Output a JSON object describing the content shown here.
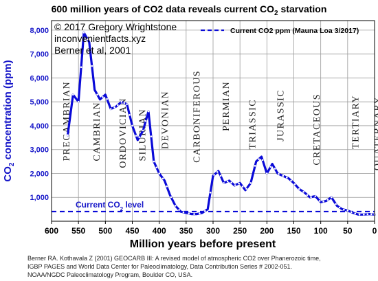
{
  "title_prefix": "600 million years of CO2 data reveals current CO",
  "title_sub": "2",
  "title_suffix": " starvation",
  "credits": [
    "© 2017 Gregory Wrightstone",
    "inconvenientfacts.xyz",
    "Berner et al, 2001"
  ],
  "legend_label": "Current CO2 ppm (Mauna Loa 3/2017)",
  "current_level": {
    "prefix": "Current CO",
    "sub": "2",
    "suffix": " level",
    "value": 405
  },
  "source_lines": [
    "Berner RA. Kothavala Z (2001) GEOCARB III: A revised model of atmospheric CO2 over Phanerozoic time,",
    "IGBP PAGES and World Data Center for Paleoclimatology, Data Contribution Series # 2002-051.",
    "NOAA/NGDC Paleoclimatology Program, Boulder CO, USA."
  ],
  "colors": {
    "series": "#0a0ad8",
    "axis_label": "#1515c8",
    "grid": "#9a9a9a",
    "text": "#000000"
  },
  "chart_data": {
    "type": "line",
    "xlabel": "Million years before present",
    "ylabel_prefix": "CO",
    "ylabel_sub": "2",
    "ylabel_suffix": " concentration (ppm)",
    "xlim": [
      600,
      0
    ],
    "ylim": [
      0,
      8400
    ],
    "x_ticks": [
      600,
      550,
      500,
      450,
      400,
      350,
      300,
      250,
      200,
      150,
      100,
      50,
      0
    ],
    "y_ticks": [
      1000,
      2000,
      3000,
      4000,
      5000,
      6000,
      7000,
      8000
    ],
    "y_tick_labels": [
      "1,000",
      "2,000",
      "3,000",
      "4,000",
      "5,000",
      "6,000",
      "7,000",
      "8,000"
    ],
    "periods": [
      {
        "name": "PRECAMBRIAN",
        "start": 600,
        "end": 542
      },
      {
        "name": "CAMBRIAN",
        "start": 542,
        "end": 488
      },
      {
        "name": "ORDOVICIAN",
        "start": 488,
        "end": 444
      },
      {
        "name": "SILURIAN",
        "start": 444,
        "end": 416
      },
      {
        "name": "DEVONIAN",
        "start": 416,
        "end": 359
      },
      {
        "name": "CARBONIFEROUS",
        "start": 359,
        "end": 299
      },
      {
        "name": "PERMIAN",
        "start": 299,
        "end": 251
      },
      {
        "name": "TRIASSIC",
        "start": 251,
        "end": 200
      },
      {
        "name": "JURASSIC",
        "start": 200,
        "end": 146
      },
      {
        "name": "CRETACEOUS",
        "start": 146,
        "end": 66
      },
      {
        "name": "TERTIARY",
        "start": 66,
        "end": 2
      },
      {
        "name": "QUATERNARY",
        "start": 2,
        "end": 0
      }
    ],
    "series": [
      {
        "x": [
          570,
          560,
          550,
          540,
          530,
          520,
          510,
          500,
          490,
          480,
          470,
          460,
          450,
          440,
          430,
          420,
          410,
          400,
          390,
          380,
          370,
          360,
          350,
          340,
          330,
          320,
          310,
          300,
          290,
          280,
          270,
          260,
          250,
          240,
          230,
          220,
          210,
          200,
          190,
          180,
          170,
          160,
          150,
          140,
          130,
          120,
          110,
          100,
          90,
          80,
          70,
          60,
          50,
          40,
          30,
          20,
          10,
          0
        ],
        "y": [
          3600,
          5300,
          5000,
          7900,
          7500,
          5500,
          5100,
          5300,
          4700,
          4800,
          5000,
          4900,
          4000,
          3400,
          3800,
          4600,
          2500,
          2000,
          1700,
          1100,
          650,
          400,
          350,
          300,
          300,
          350,
          500,
          1900,
          2100,
          1600,
          1700,
          1500,
          1600,
          1300,
          1600,
          2500,
          2700,
          2000,
          2400,
          2000,
          1900,
          1800,
          1600,
          1350,
          1200,
          1000,
          1050,
          800,
          850,
          1000,
          650,
          500,
          450,
          350,
          280,
          280,
          300,
          280
        ],
        "points_x": [
          580,
          570,
          560,
          550,
          545,
          540,
          533,
          525,
          515,
          505,
          497,
          490,
          483,
          477,
          470,
          465,
          460,
          455,
          450,
          443,
          437,
          430,
          425,
          420,
          415,
          410,
          405,
          400,
          393,
          386,
          378,
          370,
          363,
          355,
          345,
          335,
          325,
          315,
          305,
          298,
          292,
          286,
          280,
          273,
          266,
          259,
          252,
          245,
          238,
          230,
          222,
          215,
          208,
          200,
          193,
          185,
          178,
          170,
          163,
          155,
          148,
          140,
          132,
          125,
          118,
          110,
          102,
          95,
          87,
          80,
          72,
          65,
          57,
          50,
          43,
          36,
          28,
          20,
          13,
          6,
          0
        ]
      }
    ]
  }
}
